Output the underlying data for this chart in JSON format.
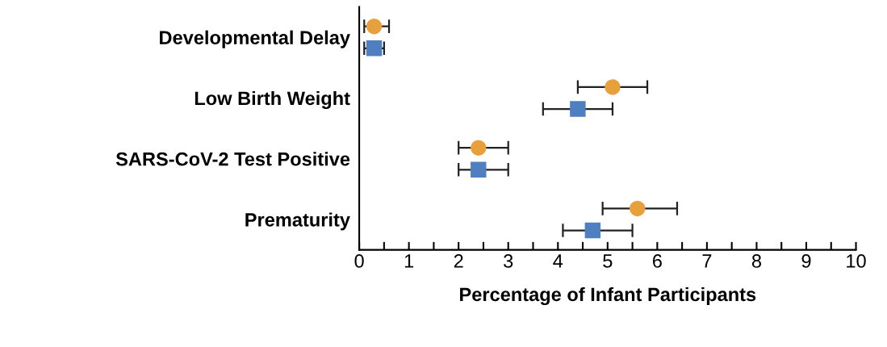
{
  "chart_data": {
    "type": "scatter",
    "orientation": "horizontal",
    "xlabel": "Percentage of Infant Participants",
    "categories": [
      "Developmental Delay",
      "Low Birth Weight",
      "SARS-CoV-2 Test Positive",
      "Prematurity"
    ],
    "series": [
      {
        "color": "#e8a03c",
        "marker": "circle",
        "values": [
          0.3,
          5.1,
          2.4,
          5.6
        ],
        "errors": [
          [
            0.1,
            0.6
          ],
          [
            4.4,
            5.8
          ],
          [
            2.0,
            3.0
          ],
          [
            4.9,
            6.4
          ]
        ]
      },
      {
        "color": "#4f7fc0",
        "marker": "square",
        "values": [
          0.3,
          4.4,
          2.4,
          4.7
        ],
        "errors": [
          [
            0.1,
            0.5
          ],
          [
            3.7,
            5.1
          ],
          [
            2.0,
            3.0
          ],
          [
            4.1,
            5.5
          ]
        ]
      }
    ],
    "xlim": [
      0,
      10
    ],
    "xticks": [
      0,
      {
        "value": 0.5,
        "label": null
      },
      1,
      {
        "value": 1.5,
        "label": null
      },
      2,
      {
        "value": 2.5,
        "label": null
      },
      3,
      {
        "value": 3.5,
        "label": null
      },
      4,
      {
        "value": 4.5,
        "label": null
      },
      5,
      {
        "value": 5.5,
        "label": null
      },
      6,
      {
        "value": 6.5,
        "label": null
      },
      7,
      {
        "value": 7.5,
        "label": null
      },
      8,
      {
        "value": 8.5,
        "label": null
      },
      9,
      {
        "value": 9.5,
        "label": null
      },
      10
    ],
    "grid": false,
    "legend": false
  }
}
